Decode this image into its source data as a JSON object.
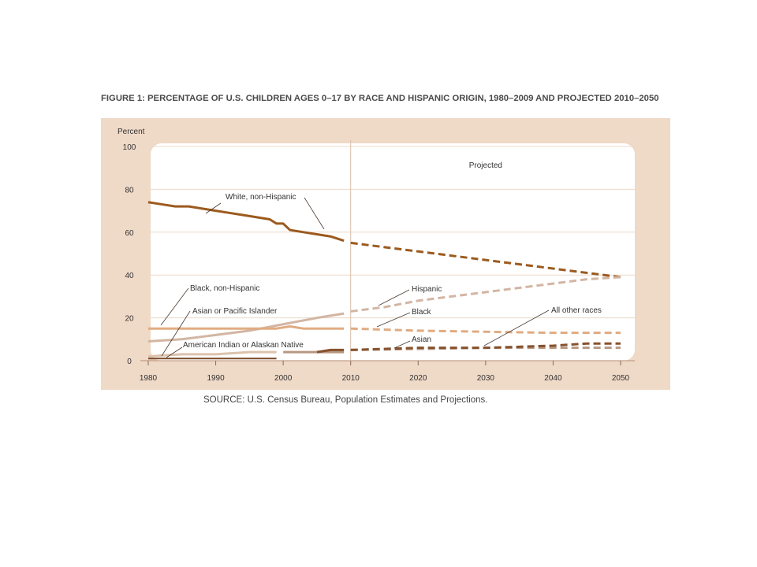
{
  "figure": {
    "title": "FIGURE 1: PERCENTAGE OF U.S. CHILDREN AGES 0–17 BY RACE AND HISPANIC ORIGIN, 1980–2009 AND PROJECTED 2010–2050",
    "source": "SOURCE: U.S. Census Bureau, Population Estimates and Projections."
  },
  "chart_data": {
    "type": "line",
    "title": "FIGURE 1: PERCENTAGE OF U.S. CHILDREN AGES 0–17 BY RACE AND HISPANIC ORIGIN, 1980–2009 AND PROJECTED 2010–2050",
    "ylabel": "Percent",
    "xlabel": "",
    "xlim": [
      1980,
      2050
    ],
    "ylim": [
      0,
      100
    ],
    "xticks": [
      1980,
      1990,
      2000,
      2010,
      2020,
      2030,
      2040,
      2050
    ],
    "yticks": [
      0,
      20,
      40,
      60,
      80,
      100
    ],
    "grid": true,
    "projection_start": 2010,
    "annotations": [
      {
        "text": "Projected",
        "x": 2030,
        "y": 90
      }
    ],
    "colors": {
      "white": "#9c5a1e",
      "hispanic": "#d2b6a3",
      "black": "#e0ab82",
      "asian_pi": "#dcc2ac",
      "amind": "#7a4a28",
      "asian": "#b79882",
      "other": "#86512d"
    },
    "series": [
      {
        "name": "White, non-Hispanic",
        "key": "white",
        "width": 3,
        "historical": {
          "x": [
            1980,
            1982,
            1984,
            1986,
            1988,
            1990,
            1992,
            1994,
            1996,
            1998,
            1999,
            2000,
            2001,
            2003,
            2005,
            2007,
            2009
          ],
          "y": [
            74,
            73,
            72,
            72,
            71,
            70,
            69,
            68,
            67,
            66,
            64,
            64,
            61,
            60,
            59,
            58,
            56
          ]
        },
        "projected": {
          "x": [
            2010,
            2015,
            2020,
            2025,
            2030,
            2035,
            2040,
            2045,
            2050
          ],
          "y": [
            55,
            53,
            51,
            49,
            47,
            45,
            43,
            41,
            39
          ]
        }
      },
      {
        "name": "Hispanic",
        "key": "hispanic",
        "width": 3,
        "historical": {
          "x": [
            1980,
            1985,
            1990,
            1995,
            2000,
            2005,
            2009
          ],
          "y": [
            9,
            10,
            12,
            14,
            17,
            20,
            22
          ]
        },
        "projected": {
          "x": [
            2010,
            2015,
            2020,
            2025,
            2030,
            2035,
            2040,
            2045,
            2050
          ],
          "y": [
            23,
            25,
            28,
            30,
            32,
            34,
            36,
            38,
            39
          ]
        }
      },
      {
        "name": "Black, non-Hispanic",
        "key": "black",
        "width": 3,
        "historical": {
          "x": [
            1980,
            1985,
            1990,
            1995,
            1999,
            2001,
            2003,
            2005,
            2009
          ],
          "y": [
            15,
            15,
            15,
            15,
            15,
            16,
            15,
            15,
            15
          ]
        },
        "projected": {
          "x": [
            2010,
            2020,
            2030,
            2040,
            2050
          ],
          "y": [
            15,
            14,
            13.5,
            13,
            13
          ]
        }
      },
      {
        "name": "Asian or Pacific Islander",
        "key": "asian_pi",
        "width": 3,
        "historical": {
          "x": [
            1980,
            1985,
            1990,
            1995,
            1999
          ],
          "y": [
            2,
            3,
            3,
            4,
            4
          ]
        },
        "projected": null
      },
      {
        "name": "American Indian or Alaskan Native",
        "key": "amind",
        "width": 2,
        "historical": {
          "x": [
            1980,
            1990,
            1999
          ],
          "y": [
            1,
            1,
            1
          ]
        },
        "projected": null
      },
      {
        "name": "Asian",
        "key": "asian",
        "width": 3,
        "historical": {
          "x": [
            2000,
            2005,
            2009
          ],
          "y": [
            4,
            4,
            4
          ]
        },
        "projected": {
          "x": [
            2010,
            2020,
            2030,
            2040,
            2050
          ],
          "y": [
            5,
            5.5,
            6,
            6,
            6
          ]
        }
      },
      {
        "name": "All other races",
        "key": "other",
        "width": 3,
        "historical": {
          "x": [
            2005,
            2007,
            2009
          ],
          "y": [
            4,
            5,
            5
          ]
        },
        "projected": {
          "x": [
            2010,
            2020,
            2030,
            2040,
            2045,
            2050
          ],
          "y": [
            5,
            6,
            6,
            7,
            8,
            8
          ]
        }
      }
    ],
    "labels": [
      {
        "text": "White, non-Hispanic",
        "key": "white"
      },
      {
        "text": "Black, non-Hispanic",
        "key": "black_nh"
      },
      {
        "text": "Asian or Pacific Islander",
        "key": "asian_pi"
      },
      {
        "text": "American Indian or Alaskan Native",
        "key": "amind"
      },
      {
        "text": "Hispanic",
        "key": "hispanic"
      },
      {
        "text": "Black",
        "key": "black"
      },
      {
        "text": "Asian",
        "key": "asian"
      },
      {
        "text": "All other races",
        "key": "other"
      }
    ]
  }
}
